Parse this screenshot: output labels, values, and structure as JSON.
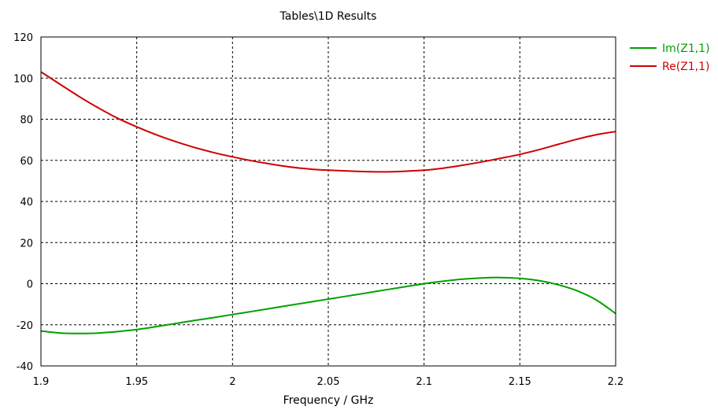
{
  "chart_data": {
    "type": "line",
    "title": "Tables\\1D Results",
    "xlabel": "Frequency / GHz",
    "ylabel": "",
    "xlim": [
      1.9,
      2.2
    ],
    "ylim": [
      -40,
      120
    ],
    "xticks": [
      1.9,
      1.95,
      2.0,
      2.05,
      2.1,
      2.15,
      2.2
    ],
    "xtick_labels": [
      "1.9",
      "1.95",
      "2",
      "2.05",
      "2.1",
      "2.15",
      "2.2"
    ],
    "yticks": [
      -40,
      -20,
      0,
      20,
      40,
      60,
      80,
      100,
      120
    ],
    "ytick_labels": [
      "-40",
      "-20",
      "0",
      "20",
      "40",
      "60",
      "80",
      "100",
      "120"
    ],
    "grid": true,
    "legend_position": "right-top",
    "series": [
      {
        "name": "Im(Z1,1)",
        "color": "#00a000",
        "x": [
          1.9,
          1.91,
          1.92,
          1.93,
          1.94,
          1.95,
          1.96,
          1.97,
          1.98,
          1.99,
          2.0,
          2.01,
          2.02,
          2.03,
          2.04,
          2.05,
          2.06,
          2.07,
          2.08,
          2.09,
          2.1,
          2.11,
          2.12,
          2.13,
          2.14,
          2.15,
          2.16,
          2.17,
          2.18,
          2.19,
          2.2
        ],
        "y": [
          -23,
          -24,
          -24.2,
          -24,
          -23.3,
          -22.3,
          -20.9,
          -19.4,
          -17.9,
          -16.5,
          -15,
          -13.5,
          -12,
          -10.5,
          -9,
          -7.5,
          -6,
          -4.5,
          -3,
          -1.5,
          0,
          1.2,
          2.2,
          2.8,
          3,
          2.6,
          1.5,
          -0.5,
          -3.5,
          -8,
          -14.5
        ]
      },
      {
        "name": "Re(Z1,1)",
        "color": "#d00000",
        "x": [
          1.9,
          1.91,
          1.92,
          1.93,
          1.94,
          1.95,
          1.96,
          1.97,
          1.98,
          1.99,
          2.0,
          2.01,
          2.02,
          2.03,
          2.04,
          2.05,
          2.06,
          2.07,
          2.08,
          2.09,
          2.1,
          2.11,
          2.12,
          2.13,
          2.14,
          2.15,
          2.16,
          2.17,
          2.18,
          2.19,
          2.2
        ],
        "y": [
          103,
          97,
          91,
          85.5,
          80.5,
          76.3,
          72.5,
          69.2,
          66.3,
          63.8,
          61.7,
          59.8,
          58.2,
          56.8,
          55.8,
          55.2,
          54.8,
          54.5,
          54.4,
          54.7,
          55.2,
          56.2,
          57.6,
          59.2,
          61,
          62.9,
          65.2,
          67.8,
          70.3,
          72.5,
          74
        ]
      }
    ]
  }
}
